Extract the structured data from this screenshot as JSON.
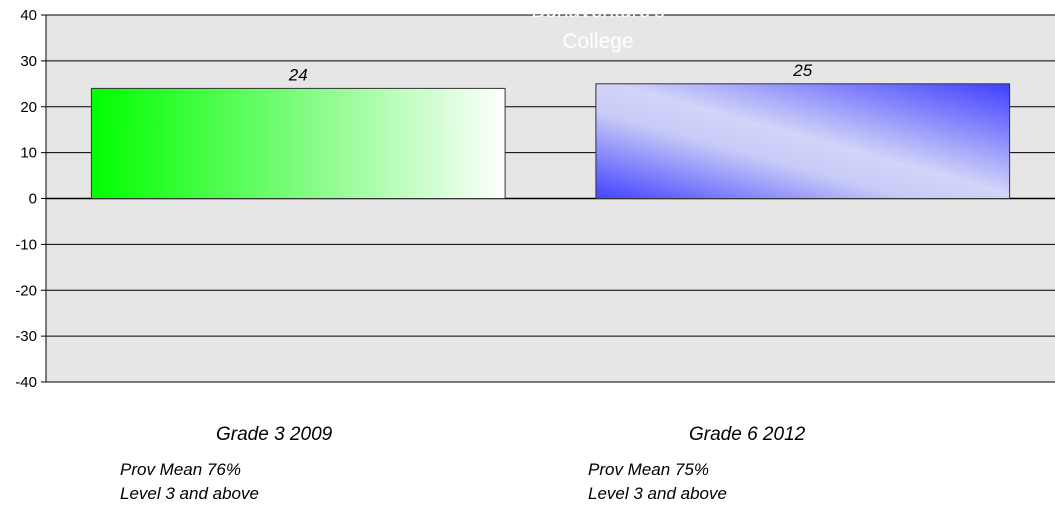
{
  "chart_data": {
    "type": "bar",
    "title_lines": [
      "Bonaventure's",
      "College"
    ],
    "categories": [
      "Grade 3 2009",
      "Grade 6 2012"
    ],
    "values": [
      24,
      25
    ],
    "notes": [
      [
        "Prov  Mean 76%",
        "Level 3 and above"
      ],
      [
        "Prov Mean 75%",
        "Level 3 and above"
      ]
    ],
    "ylim": [
      -40,
      40
    ],
    "yticks": [
      40,
      30,
      20,
      10,
      0,
      -10,
      -20,
      -30,
      -40
    ],
    "grid": true,
    "plot_background": "#e6e6e6",
    "bar_colors": [
      "#00ff00",
      "#4a4aff"
    ]
  }
}
